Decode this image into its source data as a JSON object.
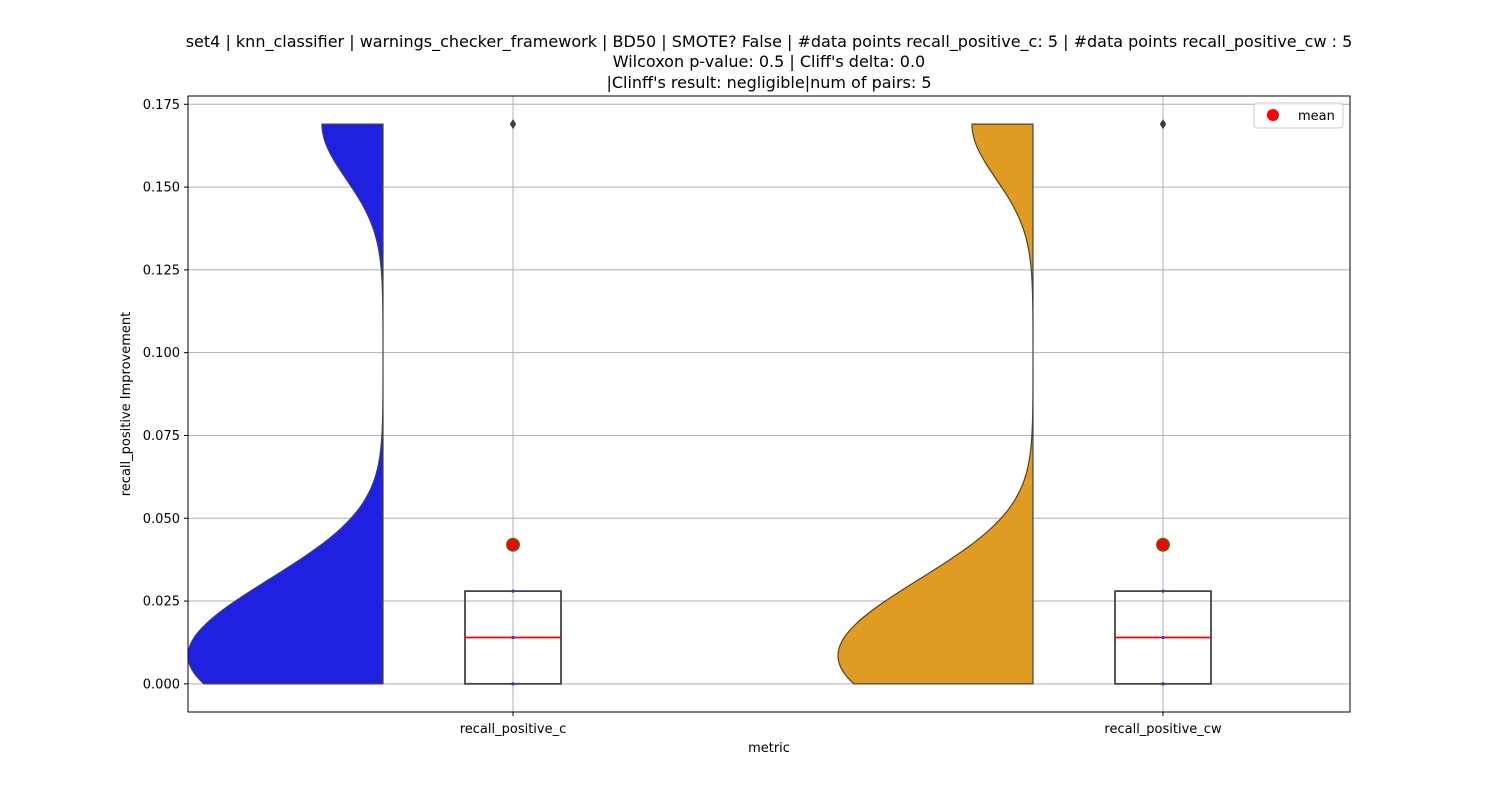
{
  "chart_data": {
    "type": "violin+box",
    "title_lines": [
      "set4 | knn_classifier | warnings_checker_framework | BD50 | SMOTE? False | #data points recall_positive_c: 5 | #data points recall_positive_cw : 5",
      "Wilcoxon p-value: 0.5 | Cliff's delta: 0.0",
      "|Clinff's result: negligible|num of pairs: 5"
    ],
    "xlabel": "metric",
    "ylabel": "recall_positive Improvement",
    "categories": [
      "recall_positive_c",
      "recall_positive_cw"
    ],
    "ylim": [
      -0.0085,
      0.1775
    ],
    "yticks": [
      "0.000",
      "0.025",
      "0.050",
      "0.075",
      "0.100",
      "0.125",
      "0.150",
      "0.175"
    ],
    "ytick_values": [
      0.0,
      0.025,
      0.05,
      0.075,
      0.1,
      0.125,
      0.15,
      0.175
    ],
    "grid": true,
    "legend": {
      "placement": "top-right",
      "entries": [
        {
          "label": "mean",
          "color": "#ff0000",
          "marker": "circle"
        }
      ]
    },
    "series": [
      {
        "name": "recall_positive_c",
        "violin_color": "#2020e0",
        "points": [
          0.0,
          0.0,
          0.014,
          0.028,
          0.169
        ],
        "box": {
          "min": 0.0,
          "q1": 0.0,
          "median": 0.014,
          "q3": 0.028,
          "max": 0.028,
          "outliers": [
            0.169
          ]
        },
        "mean": 0.042
      },
      {
        "name": "recall_positive_cw",
        "violin_color": "#e09c22",
        "points": [
          0.0,
          0.0,
          0.014,
          0.028,
          0.169
        ],
        "box": {
          "min": 0.0,
          "q1": 0.0,
          "median": 0.014,
          "q3": 0.028,
          "max": 0.028,
          "outliers": [
            0.169
          ]
        },
        "mean": 0.042
      }
    ],
    "colors": {
      "median": "#ff0000",
      "mean_marker": "#ff0000",
      "mean_edge": "#2a8a2a",
      "box_edge": "#444444",
      "grid": "#b0b0b0"
    }
  }
}
